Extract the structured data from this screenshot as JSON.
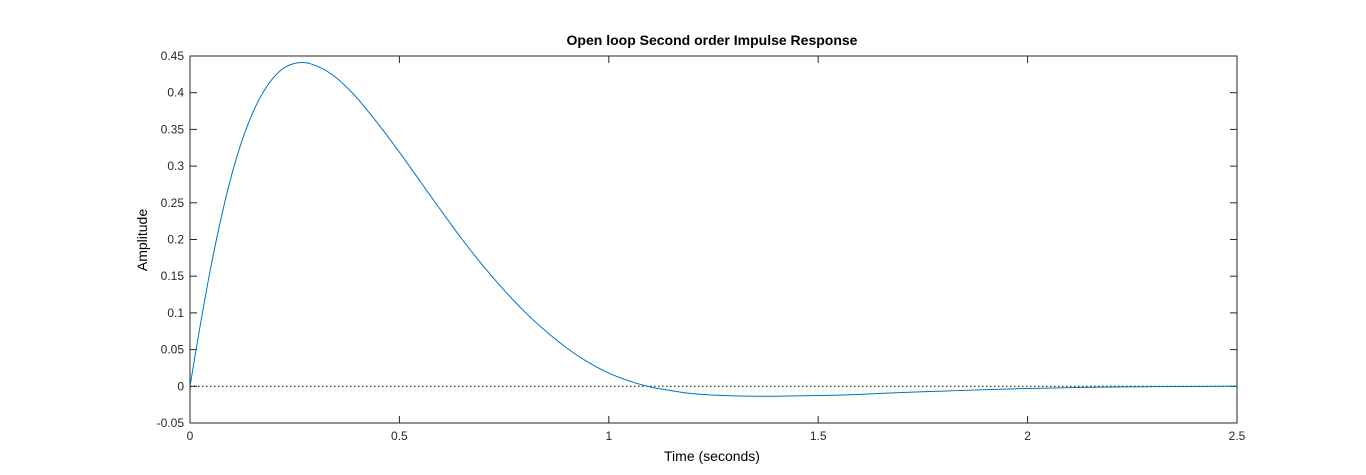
{
  "chart_data": {
    "type": "line",
    "title": "Open loop Second order Impulse Response",
    "xlabel": "Time (seconds)",
    "ylabel": "Amplitude",
    "xlim": [
      0,
      2.5
    ],
    "ylim": [
      -0.05,
      0.45
    ],
    "xticks": [
      0,
      0.5,
      1,
      1.5,
      2,
      2.5
    ],
    "xtick_labels": [
      "0",
      "0.5",
      "1",
      "1.5",
      "2",
      "2.5"
    ],
    "yticks": [
      -0.05,
      0,
      0.05,
      0.1,
      0.15,
      0.2,
      0.25,
      0.3,
      0.35,
      0.4,
      0.45
    ],
    "ytick_labels": [
      "-0.05",
      "0",
      "0.05",
      "0.1",
      "0.15",
      "0.2",
      "0.25",
      "0.3",
      "0.35",
      "0.4",
      "0.45"
    ],
    "grid": false,
    "reference_line": {
      "y": 0,
      "style": "dotted",
      "color": "#000000"
    },
    "series": [
      {
        "color": "#0072bd",
        "x": [
          0,
          0.025,
          0.05,
          0.075,
          0.1,
          0.125,
          0.15,
          0.175,
          0.2,
          0.225,
          0.25,
          0.275,
          0.3,
          0.325,
          0.35,
          0.375,
          0.4,
          0.45,
          0.5,
          0.55,
          0.6,
          0.65,
          0.7,
          0.75,
          0.8,
          0.85,
          0.9,
          0.95,
          1.0,
          1.05,
          1.1,
          1.15,
          1.2,
          1.25,
          1.3,
          1.35,
          1.4,
          1.45,
          1.5,
          1.55,
          1.6,
          1.7,
          1.8,
          1.9,
          2.0,
          2.1,
          2.2,
          2.3,
          2.4,
          2.5
        ],
        "y": [
          0,
          0.085,
          0.163,
          0.231,
          0.289,
          0.336,
          0.373,
          0.401,
          0.421,
          0.434,
          0.44,
          0.441,
          0.437,
          0.43,
          0.42,
          0.407,
          0.392,
          0.357,
          0.319,
          0.279,
          0.239,
          0.2,
          0.164,
          0.131,
          0.101,
          0.075,
          0.052,
          0.033,
          0.018,
          0.007,
          -0.001,
          -0.006,
          -0.01,
          -0.012,
          -0.013,
          -0.0135,
          -0.0135,
          -0.013,
          -0.0125,
          -0.012,
          -0.011,
          -0.0085,
          -0.0065,
          -0.0045,
          -0.003,
          -0.0018,
          -0.001,
          -0.0005,
          -0.0002,
          0
        ]
      }
    ]
  }
}
